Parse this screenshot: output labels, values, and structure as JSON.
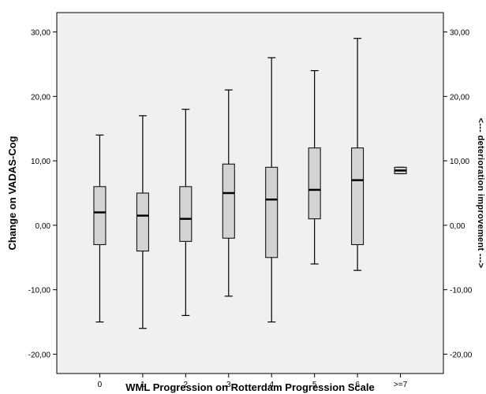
{
  "chart_data": {
    "type": "box",
    "title": "",
    "xlabel": "WML Progression on Rotterdam Progression Scale",
    "ylabel": "Change on VADAS-Cog",
    "right_label": "<--- deterioration  improvement --->",
    "ylim": [
      -23,
      33
    ],
    "yticks": [
      -20,
      -10,
      0,
      10,
      20,
      30
    ],
    "ytick_labels": [
      "-20,00",
      "-10,00",
      "0,00",
      "10,00",
      "20,00",
      "30,00"
    ],
    "categories": [
      "0",
      "1",
      "2",
      "3",
      "4",
      "5",
      "6",
      ">=7"
    ],
    "boxes": [
      {
        "min": -15,
        "q1": -3,
        "median": 2,
        "q3": 6,
        "max": 14
      },
      {
        "min": -16,
        "q1": -4,
        "median": 1.5,
        "q3": 5,
        "max": 17
      },
      {
        "min": -14,
        "q1": -2.5,
        "median": 1,
        "q3": 6,
        "max": 18
      },
      {
        "min": -11,
        "q1": -2,
        "median": 5,
        "q3": 9.5,
        "max": 21
      },
      {
        "min": -15,
        "q1": -5,
        "median": 4,
        "q3": 9,
        "max": 26
      },
      {
        "min": -6,
        "q1": 1,
        "median": 5.5,
        "q3": 12,
        "max": 24
      },
      {
        "min": -7,
        "q1": -3,
        "median": 7,
        "q3": 12,
        "max": 29
      },
      {
        "min": 8,
        "q1": 8,
        "median": 8.5,
        "q3": 9,
        "max": 9
      }
    ],
    "grid": false,
    "colors": {
      "plot_bg": "#f0f0f0",
      "box_fill": "#d3d3d3",
      "line": "#000000"
    }
  }
}
